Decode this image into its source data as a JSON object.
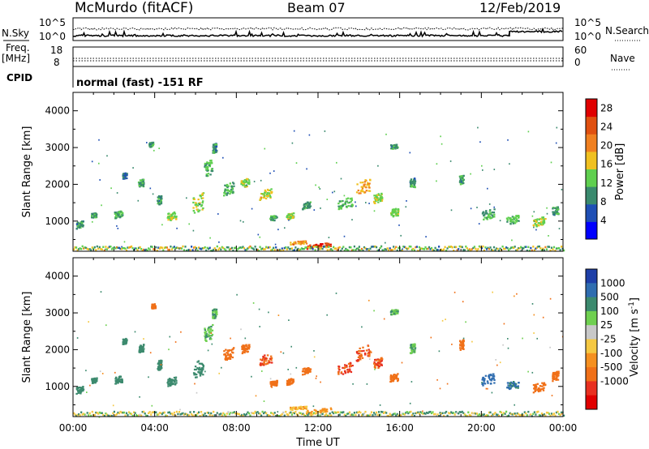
{
  "header": {
    "station": "McMurdo (fitACF)",
    "beam": "Beam 07",
    "date": "12/Feb/2019"
  },
  "top_panel": {
    "left_label": "N.Sky",
    "left_ticks": [
      "10^5",
      "10^0"
    ],
    "right_ticks": [
      "10^5",
      "10^0"
    ],
    "right_label": "N.Search"
  },
  "freq_panel": {
    "left_label_line1": "Freq.",
    "left_label_line2": "[MHz]",
    "left_ticks": [
      "18",
      "8"
    ],
    "right_ticks": [
      "60",
      "0"
    ],
    "right_label": "Nave"
  },
  "cpid": {
    "label": "CPID",
    "text": "normal (fast) -151 RF"
  },
  "colors": {
    "power_scale": [
      "#0000ff",
      "#1f4fb5",
      "#3a8a6e",
      "#5fcf4f",
      "#f0c020",
      "#f08020",
      "#e05010",
      "#e00000"
    ],
    "velocity_scale": [
      "#1e3fa8",
      "#2f6db0",
      "#3c8a6e",
      "#6fd050",
      "#c8c8c8",
      "#f5c842",
      "#f59020",
      "#f07018",
      "#e83020",
      "#e00000"
    ]
  },
  "chart_data": [
    {
      "type": "heatmap",
      "title": "",
      "quantity": "Power",
      "xlabel": "",
      "ylabel": "Slant Range [km]",
      "ylim": [
        180,
        4500
      ],
      "y_ticks": [
        1000,
        2000,
        3000,
        4000
      ],
      "x_tick_labels": [
        "00:00",
        "04:00",
        "08:00",
        "12:00",
        "16:00",
        "20:00",
        "00:00"
      ],
      "x_range_hours": [
        0,
        24
      ],
      "colorbar": {
        "label": "Power [dB]",
        "ticks": [
          4,
          8,
          12,
          16,
          20,
          24,
          28
        ],
        "range": [
          0,
          30
        ]
      },
      "echo_regions": [
        {
          "t": 0.3,
          "r": 920,
          "dt": 0.35,
          "dr": 180,
          "v": 10
        },
        {
          "t": 1.0,
          "r": 1180,
          "dt": 0.25,
          "dr": 130,
          "v": 10
        },
        {
          "t": 2.2,
          "r": 1200,
          "dt": 0.4,
          "dr": 180,
          "v": 12
        },
        {
          "t": 2.5,
          "r": 2250,
          "dt": 0.2,
          "dr": 150,
          "v": 8
        },
        {
          "t": 3.3,
          "r": 2050,
          "dt": 0.25,
          "dr": 200,
          "v": 10
        },
        {
          "t": 3.8,
          "r": 3100,
          "dt": 0.2,
          "dr": 120,
          "v": 10
        },
        {
          "t": 4.2,
          "r": 1600,
          "dt": 0.2,
          "dr": 250,
          "v": 10
        },
        {
          "t": 4.8,
          "r": 1150,
          "dt": 0.45,
          "dr": 200,
          "v": 14
        },
        {
          "t": 6.1,
          "r": 1500,
          "dt": 0.5,
          "dr": 450,
          "v": 14
        },
        {
          "t": 6.6,
          "r": 2450,
          "dt": 0.4,
          "dr": 400,
          "v": 12
        },
        {
          "t": 6.9,
          "r": 3000,
          "dt": 0.2,
          "dr": 250,
          "v": 10
        },
        {
          "t": 7.6,
          "r": 1900,
          "dt": 0.5,
          "dr": 300,
          "v": 12
        },
        {
          "t": 8.4,
          "r": 2050,
          "dt": 0.4,
          "dr": 220,
          "v": 14
        },
        {
          "t": 9.4,
          "r": 1750,
          "dt": 0.6,
          "dr": 260,
          "v": 16
        },
        {
          "t": 9.8,
          "r": 1100,
          "dt": 0.35,
          "dr": 130,
          "v": 10
        },
        {
          "t": 10.6,
          "r": 1150,
          "dt": 0.35,
          "dr": 150,
          "v": 14
        },
        {
          "t": 11.4,
          "r": 1450,
          "dt": 0.4,
          "dr": 180,
          "v": 10
        },
        {
          "t": 13.3,
          "r": 1500,
          "dt": 0.7,
          "dr": 260,
          "v": 12
        },
        {
          "t": 14.2,
          "r": 1950,
          "dt": 0.7,
          "dr": 350,
          "v": 18
        },
        {
          "t": 14.9,
          "r": 1650,
          "dt": 0.4,
          "dr": 250,
          "v": 14
        },
        {
          "t": 15.7,
          "r": 1250,
          "dt": 0.4,
          "dr": 200,
          "v": 14
        },
        {
          "t": 15.7,
          "r": 3050,
          "dt": 0.35,
          "dr": 130,
          "v": 10
        },
        {
          "t": 16.6,
          "r": 2050,
          "dt": 0.25,
          "dr": 250,
          "v": 10
        },
        {
          "t": 19.0,
          "r": 2150,
          "dt": 0.2,
          "dr": 250,
          "v": 10
        },
        {
          "t": 20.3,
          "r": 1200,
          "dt": 0.6,
          "dr": 260,
          "v": 12
        },
        {
          "t": 21.5,
          "r": 1050,
          "dt": 0.6,
          "dr": 200,
          "v": 12
        },
        {
          "t": 22.8,
          "r": 1000,
          "dt": 0.6,
          "dr": 220,
          "v": 14
        },
        {
          "t": 23.6,
          "r": 1300,
          "dt": 0.3,
          "dr": 230,
          "v": 10
        },
        {
          "t": 12.0,
          "r": 350,
          "dt": 1.2,
          "dr": 100,
          "v": 26
        },
        {
          "t": 11.0,
          "r": 430,
          "dt": 0.8,
          "dr": 80,
          "v": 20
        }
      ]
    },
    {
      "type": "heatmap",
      "title": "",
      "quantity": "Velocity",
      "xlabel": "Time UT",
      "ylabel": "Slant Range [km]",
      "ylim": [
        180,
        4500
      ],
      "y_ticks": [
        1000,
        2000,
        3000,
        4000
      ],
      "x_tick_labels": [
        "00:00",
        "04:00",
        "08:00",
        "12:00",
        "16:00",
        "20:00",
        "00:00"
      ],
      "x_range_hours": [
        0,
        24
      ],
      "colorbar": {
        "label": "Velocity [m s-1]",
        "label_prefix": "Velocity [m s",
        "label_exponent": "-1",
        "label_suffix": "]",
        "ticks": [
          "1000",
          "500",
          "100",
          "25",
          "-25",
          "-100",
          "-500",
          "-1000"
        ]
      },
      "echo_regions": [
        {
          "t": 0.3,
          "r": 920,
          "dt": 0.35,
          "dr": 180,
          "v": 150
        },
        {
          "t": 1.0,
          "r": 1180,
          "dt": 0.25,
          "dr": 130,
          "v": 200
        },
        {
          "t": 2.2,
          "r": 1200,
          "dt": 0.4,
          "dr": 180,
          "v": 200
        },
        {
          "t": 2.5,
          "r": 2250,
          "dt": 0.2,
          "dr": 150,
          "v": 150
        },
        {
          "t": 3.3,
          "r": 2050,
          "dt": 0.25,
          "dr": 200,
          "v": 200
        },
        {
          "t": 3.9,
          "r": 3200,
          "dt": 0.2,
          "dr": 120,
          "v": -250
        },
        {
          "t": 4.2,
          "r": 1600,
          "dt": 0.2,
          "dr": 250,
          "v": 200
        },
        {
          "t": 4.8,
          "r": 1150,
          "dt": 0.45,
          "dr": 200,
          "v": 200
        },
        {
          "t": 6.1,
          "r": 1500,
          "dt": 0.5,
          "dr": 450,
          "v": 150
        },
        {
          "t": 6.6,
          "r": 2450,
          "dt": 0.4,
          "dr": 400,
          "v": 60
        },
        {
          "t": 6.9,
          "r": 3000,
          "dt": 0.2,
          "dr": 250,
          "v": 60
        },
        {
          "t": 7.6,
          "r": 1900,
          "dt": 0.5,
          "dr": 300,
          "v": -200
        },
        {
          "t": 8.4,
          "r": 2050,
          "dt": 0.4,
          "dr": 220,
          "v": -250
        },
        {
          "t": 9.4,
          "r": 1750,
          "dt": 0.6,
          "dr": 260,
          "v": -300
        },
        {
          "t": 9.8,
          "r": 1100,
          "dt": 0.35,
          "dr": 130,
          "v": -250
        },
        {
          "t": 10.6,
          "r": 1150,
          "dt": 0.35,
          "dr": 150,
          "v": -250
        },
        {
          "t": 11.4,
          "r": 1450,
          "dt": 0.4,
          "dr": 180,
          "v": -250
        },
        {
          "t": 13.3,
          "r": 1500,
          "dt": 0.7,
          "dr": 260,
          "v": -300
        },
        {
          "t": 14.2,
          "r": 1950,
          "dt": 0.7,
          "dr": 350,
          "v": -300
        },
        {
          "t": 14.9,
          "r": 1650,
          "dt": 0.4,
          "dr": 250,
          "v": -300
        },
        {
          "t": 15.7,
          "r": 1250,
          "dt": 0.4,
          "dr": 200,
          "v": -250
        },
        {
          "t": 15.7,
          "r": 3050,
          "dt": 0.35,
          "dr": 130,
          "v": 60
        },
        {
          "t": 16.6,
          "r": 2050,
          "dt": 0.25,
          "dr": 250,
          "v": 60
        },
        {
          "t": 19.0,
          "r": 2150,
          "dt": 0.2,
          "dr": 250,
          "v": -200
        },
        {
          "t": 20.3,
          "r": 1200,
          "dt": 0.6,
          "dr": 260,
          "v": 400
        },
        {
          "t": 21.5,
          "r": 1050,
          "dt": 0.6,
          "dr": 200,
          "v": 300
        },
        {
          "t": 22.8,
          "r": 1000,
          "dt": 0.6,
          "dr": 220,
          "v": -150
        },
        {
          "t": 23.6,
          "r": 1300,
          "dt": 0.3,
          "dr": 230,
          "v": -200
        },
        {
          "t": 12.0,
          "r": 350,
          "dt": 1.2,
          "dr": 100,
          "v": -80
        },
        {
          "t": 11.0,
          "r": 430,
          "dt": 0.8,
          "dr": 80,
          "v": -60
        }
      ]
    }
  ]
}
